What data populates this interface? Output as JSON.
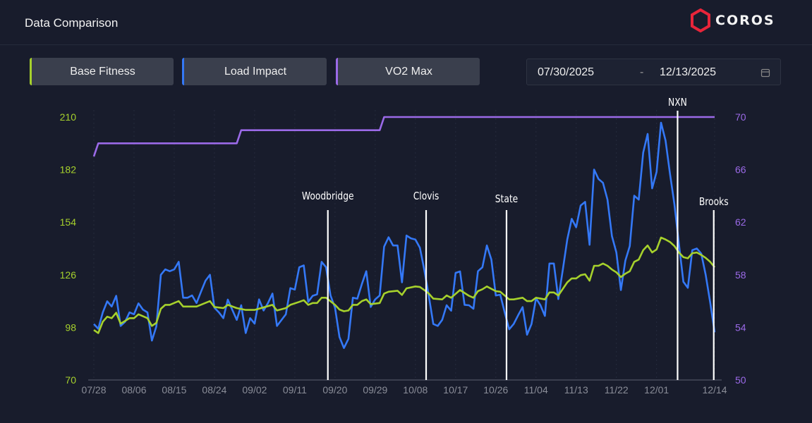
{
  "header": {
    "title": "Data Comparison",
    "brand": "COROS"
  },
  "legend": [
    {
      "label": "Base Fitness",
      "color": "#a6d12c"
    },
    {
      "label": "Load Impact",
      "color": "#3478f6"
    },
    {
      "label": "VO2 Max",
      "color": "#9b6ae8"
    }
  ],
  "date_range": {
    "start": "07/30/2025",
    "separator": "-",
    "end": "12/13/2025",
    "icon": "calendar-icon"
  },
  "chart_data": {
    "type": "line",
    "x_ticks": [
      "07/28",
      "08/06",
      "08/15",
      "08/24",
      "09/02",
      "09/11",
      "09/20",
      "09/29",
      "10/08",
      "10/17",
      "10/26",
      "11/04",
      "11/13",
      "11/22",
      "12/01",
      "12/14"
    ],
    "x_tick_days": [
      0,
      9,
      18,
      27,
      36,
      45,
      54,
      63,
      72,
      81,
      90,
      99,
      108,
      117,
      126,
      139
    ],
    "x_unit": "days since 07/28",
    "xlim": [
      0,
      139
    ],
    "y_left": {
      "ticks": [
        70,
        98,
        126,
        154,
        182,
        210
      ],
      "ylim": [
        70,
        210
      ],
      "color": "#a6d12c"
    },
    "y_right": {
      "ticks": [
        50,
        54,
        58,
        62,
        66,
        70
      ],
      "ylim": [
        50,
        70
      ],
      "color": "#9b6ae8"
    },
    "series": [
      {
        "name": "Load Impact",
        "axis": "left",
        "color": "#3478f6",
        "values": [
          99.8,
          97.3,
          106,
          111.9,
          109.1,
          114.8,
          98.8,
          101,
          106,
          105,
          110.8,
          107.5,
          106,
          91,
          98.5,
          126,
          128.9,
          127.9,
          128.9,
          132.9,
          113.8,
          113.8,
          115,
          111,
          117,
          122.9,
          126,
          108.5,
          106,
          102.9,
          112.8,
          107.3,
          102,
          109.8,
          95,
          102.9,
          100,
          112.9,
          107,
          111,
          116,
          98.8,
          101.9,
          105,
          118.9,
          118.1,
          130,
          131,
          111.6,
          114.8,
          115.6,
          132.9,
          130,
          115,
          108.5,
          92.9,
          87,
          91.9,
          113.8,
          113.3,
          121,
          127.9,
          108.9,
          112.9,
          115,
          141,
          146,
          141.6,
          141.6,
          122,
          146.9,
          145.4,
          144.8,
          140.4,
          128.5,
          114.8,
          99.8,
          98.8,
          102,
          109.8,
          106.9,
          127,
          127.8,
          110,
          109.8,
          107.9,
          127.9,
          130,
          141.6,
          134.1,
          115,
          115.4,
          106,
          97,
          99.8,
          104.4,
          108.8,
          94.1,
          99.8,
          113.5,
          109.8,
          104.1,
          132,
          132,
          113.1,
          128.5,
          144.8,
          155.8,
          151.3,
          162.9,
          164.8,
          142,
          182,
          177,
          175,
          166,
          146.6,
          137.9,
          117.9,
          133.5,
          141.3,
          168.1,
          166,
          191,
          201,
          172,
          180.8,
          207,
          197.5,
          179.8,
          163.5,
          142.3,
          122.3,
          119.1,
          139.1,
          140,
          137.3,
          126,
          111.3,
          95.4
        ]
      },
      {
        "name": "Base Fitness",
        "axis": "left",
        "color": "#a6d12c",
        "points": [
          [
            0,
            96.6
          ],
          [
            1,
            95
          ],
          [
            2,
            101
          ],
          [
            3,
            103.7
          ],
          [
            4,
            102.9
          ],
          [
            5,
            105.8
          ],
          [
            6,
            100
          ],
          [
            8,
            102.9
          ],
          [
            9,
            102.9
          ],
          [
            10,
            105
          ],
          [
            12,
            102.9
          ],
          [
            13,
            98.8
          ],
          [
            14,
            100.4
          ],
          [
            15,
            107.9
          ],
          [
            16,
            110
          ],
          [
            17,
            110
          ],
          [
            19,
            112
          ],
          [
            20,
            109.1
          ],
          [
            23,
            109.1
          ],
          [
            26,
            112
          ],
          [
            27,
            108.9
          ],
          [
            29,
            108.3
          ],
          [
            30,
            110
          ],
          [
            32,
            108.3
          ],
          [
            34,
            107.3
          ],
          [
            36,
            107.3
          ],
          [
            40,
            110
          ],
          [
            41,
            107
          ],
          [
            43,
            108.3
          ],
          [
            44,
            110
          ],
          [
            46,
            111.6
          ],
          [
            47,
            112.5
          ],
          [
            48,
            110
          ],
          [
            49,
            111
          ],
          [
            50,
            111
          ],
          [
            51,
            113.8
          ],
          [
            52,
            113.8
          ],
          [
            54,
            110
          ],
          [
            55,
            107.5
          ],
          [
            56,
            106.6
          ],
          [
            57,
            107
          ],
          [
            58,
            110
          ],
          [
            59,
            110
          ],
          [
            60,
            112
          ],
          [
            61,
            112.9
          ],
          [
            62,
            110.4
          ],
          [
            64,
            111
          ],
          [
            65,
            116
          ],
          [
            66,
            117
          ],
          [
            68,
            117.5
          ],
          [
            69,
            115.3
          ],
          [
            70,
            118.8
          ],
          [
            72,
            119.8
          ],
          [
            73,
            119.5
          ],
          [
            74,
            117.9
          ],
          [
            75,
            116
          ],
          [
            76,
            113.3
          ],
          [
            78,
            112.9
          ],
          [
            79,
            115
          ],
          [
            80,
            113.8
          ],
          [
            82,
            117.9
          ],
          [
            84,
            114.8
          ],
          [
            85,
            113.8
          ],
          [
            86,
            117.3
          ],
          [
            87,
            118.3
          ],
          [
            88,
            119.8
          ],
          [
            90,
            117.3
          ],
          [
            91,
            117
          ],
          [
            93,
            112.9
          ],
          [
            94,
            112.9
          ],
          [
            96,
            113.8
          ],
          [
            97,
            112
          ],
          [
            98,
            112
          ],
          [
            99,
            113.8
          ],
          [
            101,
            112.9
          ],
          [
            102,
            116.6
          ],
          [
            103,
            116.6
          ],
          [
            104,
            115
          ],
          [
            106,
            122
          ],
          [
            107,
            124.1
          ],
          [
            108,
            124.1
          ],
          [
            109,
            125.8
          ],
          [
            110,
            126.3
          ],
          [
            111,
            122.9
          ],
          [
            112,
            130.8
          ],
          [
            113,
            130.8
          ],
          [
            114,
            132
          ],
          [
            115,
            130.8
          ],
          [
            116,
            128.8
          ],
          [
            117,
            127.3
          ],
          [
            118,
            124.8
          ],
          [
            119,
            126.6
          ],
          [
            120,
            127.9
          ],
          [
            121,
            132.9
          ],
          [
            122,
            134.1
          ],
          [
            123,
            139.1
          ],
          [
            124,
            141.6
          ],
          [
            125,
            137.9
          ],
          [
            126,
            139.5
          ],
          [
            127,
            145.8
          ],
          [
            128,
            144.8
          ],
          [
            129,
            143.5
          ],
          [
            130,
            141.3
          ],
          [
            131,
            137.9
          ],
          [
            132,
            135.4
          ],
          [
            133,
            134.8
          ],
          [
            134,
            137.5
          ],
          [
            135,
            137.9
          ],
          [
            136,
            136.6
          ],
          [
            137,
            135
          ],
          [
            138,
            132.9
          ],
          [
            139,
            130
          ]
        ]
      },
      {
        "name": "VO2 Max",
        "axis": "right",
        "color": "#9b6ae8",
        "points": [
          [
            0,
            67
          ],
          [
            1,
            68
          ],
          [
            32,
            68
          ],
          [
            33,
            69
          ],
          [
            64,
            69
          ],
          [
            65,
            70
          ],
          [
            139,
            70
          ]
        ]
      }
    ],
    "annotations": [
      {
        "label": "Woodbridge",
        "day": 52.4
      },
      {
        "label": "Clovis",
        "day": 74.4
      },
      {
        "label": "State",
        "day": 92.4
      },
      {
        "label": "NXN",
        "day": 130.7
      },
      {
        "label": "Brooks",
        "day": 138.8
      }
    ],
    "grid": "vertical dotted",
    "legend_position": "top-left"
  }
}
